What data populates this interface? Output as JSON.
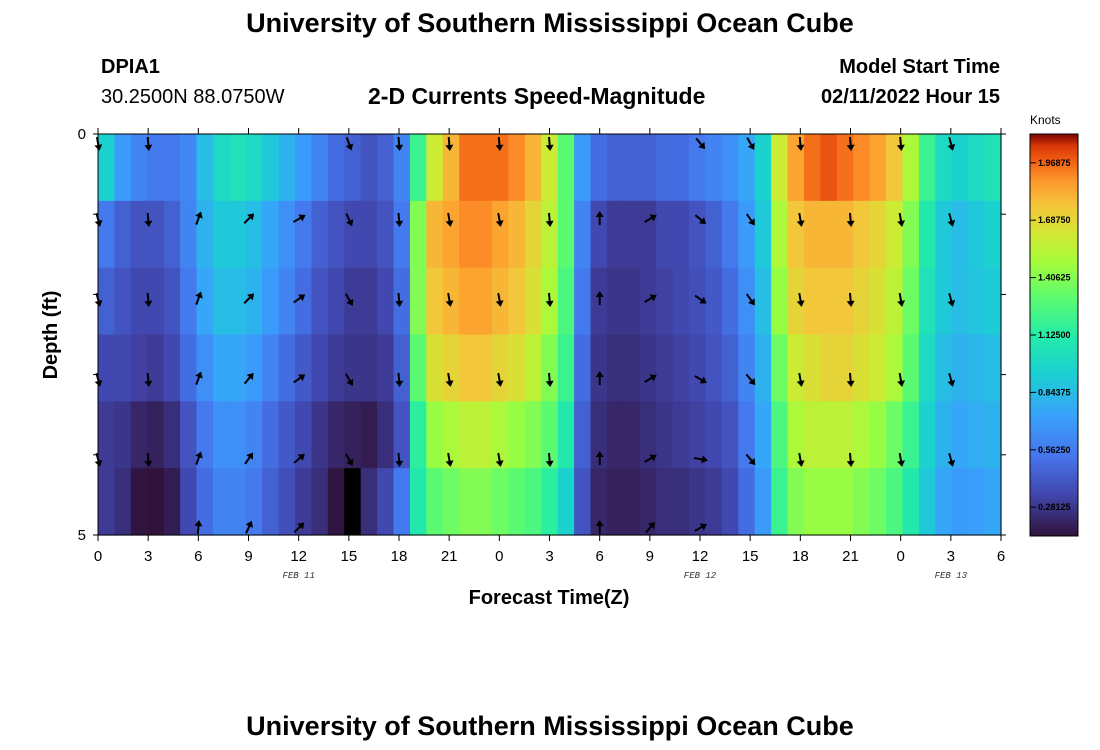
{
  "header": {
    "title": "University of Southern Mississippi Ocean Cube",
    "station": "DPIA1",
    "coords": "30.2500N  88.0750W",
    "subtitle": "2-D Currents Speed-Magnitude",
    "model_start_label": "Model Start Time",
    "model_start_value": "02/11/2022 Hour 15"
  },
  "footer": {
    "title": "University of Southern Mississippi Ocean Cube"
  },
  "chart_data": {
    "type": "heatmap",
    "title": "2-D Currents Speed-Magnitude",
    "xlabel": "Forecast Time(Z)",
    "ylabel": "Depth (ft)",
    "x_ticks": [
      "0",
      "3",
      "6",
      "9",
      "12",
      "15",
      "18",
      "21",
      "0",
      "3",
      "6",
      "9",
      "12",
      "15",
      "18",
      "21",
      "0",
      "3",
      "6"
    ],
    "x_range_hours": [
      0,
      54
    ],
    "y_ticks": [
      "0",
      "5"
    ],
    "depth_range_ft": [
      0,
      5
    ],
    "date_labels": [
      {
        "text": "FEB 11",
        "hour": 12
      },
      {
        "text": "FEB 12",
        "hour": 36
      },
      {
        "text": "FEB 13",
        "hour": 51
      }
    ],
    "depth_levels_ft": [
      0,
      1,
      2,
      3,
      4,
      5
    ],
    "speed_knots_by_level": [
      [
        0.95,
        0.7,
        0.6,
        0.55,
        0.55,
        0.62,
        0.85,
        1.0,
        1.05,
        1.0,
        0.9,
        0.8,
        0.7,
        0.6,
        0.5,
        0.45,
        0.4,
        0.45,
        0.6,
        1.2,
        1.6,
        1.8,
        1.95,
        1.95,
        1.95,
        1.9,
        1.8,
        1.6,
        1.3,
        0.7,
        0.5,
        0.45,
        0.45,
        0.45,
        0.5,
        0.5,
        0.55,
        0.6,
        0.65,
        0.75,
        0.95,
        1.6,
        1.85,
        1.95,
        2.0,
        1.95,
        1.9,
        1.85,
        1.75,
        1.5,
        1.2,
        1.0,
        0.95,
        1.0,
        1.05
      ],
      [
        0.55,
        0.45,
        0.4,
        0.4,
        0.45,
        0.6,
        0.8,
        0.9,
        0.9,
        0.85,
        0.75,
        0.65,
        0.55,
        0.45,
        0.4,
        0.35,
        0.35,
        0.4,
        0.55,
        1.4,
        1.8,
        1.85,
        1.9,
        1.9,
        1.85,
        1.8,
        1.7,
        1.55,
        1.3,
        0.6,
        0.35,
        0.3,
        0.3,
        0.3,
        0.35,
        0.35,
        0.4,
        0.45,
        0.55,
        0.7,
        0.9,
        1.5,
        1.75,
        1.8,
        1.8,
        1.8,
        1.75,
        1.7,
        1.6,
        1.4,
        1.1,
        0.9,
        0.85,
        0.9,
        0.95
      ],
      [
        0.45,
        0.4,
        0.35,
        0.35,
        0.4,
        0.55,
        0.75,
        0.85,
        0.85,
        0.8,
        0.7,
        0.6,
        0.5,
        0.4,
        0.35,
        0.3,
        0.3,
        0.35,
        0.5,
        1.4,
        1.75,
        1.8,
        1.85,
        1.85,
        1.8,
        1.75,
        1.65,
        1.5,
        1.25,
        0.55,
        0.3,
        0.28,
        0.28,
        0.3,
        0.32,
        0.35,
        0.38,
        0.42,
        0.5,
        0.65,
        0.85,
        1.45,
        1.7,
        1.75,
        1.75,
        1.75,
        1.7,
        1.65,
        1.55,
        1.35,
        1.05,
        0.9,
        0.85,
        0.88,
        0.92
      ],
      [
        0.35,
        0.35,
        0.32,
        0.3,
        0.35,
        0.5,
        0.65,
        0.75,
        0.75,
        0.7,
        0.6,
        0.5,
        0.42,
        0.35,
        0.3,
        0.28,
        0.28,
        0.3,
        0.45,
        1.3,
        1.65,
        1.7,
        1.75,
        1.75,
        1.7,
        1.65,
        1.55,
        1.4,
        1.2,
        0.5,
        0.28,
        0.25,
        0.25,
        0.28,
        0.3,
        0.32,
        0.35,
        0.4,
        0.45,
        0.6,
        0.8,
        1.35,
        1.6,
        1.65,
        1.7,
        1.7,
        1.65,
        1.6,
        1.5,
        1.3,
        1.0,
        0.85,
        0.8,
        0.82,
        0.85
      ],
      [
        0.3,
        0.28,
        0.22,
        0.2,
        0.25,
        0.4,
        0.55,
        0.65,
        0.65,
        0.6,
        0.5,
        0.42,
        0.35,
        0.28,
        0.22,
        0.2,
        0.18,
        0.25,
        0.4,
        1.15,
        1.45,
        1.5,
        1.55,
        1.55,
        1.5,
        1.45,
        1.4,
        1.3,
        1.1,
        0.45,
        0.25,
        0.22,
        0.22,
        0.25,
        0.28,
        0.3,
        0.32,
        0.35,
        0.4,
        0.55,
        0.75,
        1.25,
        1.5,
        1.55,
        1.55,
        1.55,
        1.5,
        1.45,
        1.35,
        1.2,
        0.95,
        0.8,
        0.75,
        0.78,
        0.8
      ],
      [
        0.3,
        0.25,
        0.15,
        0.12,
        0.18,
        0.35,
        0.5,
        0.6,
        0.6,
        0.55,
        0.45,
        0.38,
        0.3,
        0.25,
        0.15,
        0.05,
        0.25,
        0.35,
        0.55,
        1.1,
        1.3,
        1.35,
        1.4,
        1.4,
        1.35,
        1.3,
        1.25,
        1.15,
        0.95,
        0.4,
        0.22,
        0.2,
        0.2,
        0.22,
        0.25,
        0.25,
        0.28,
        0.3,
        0.35,
        0.5,
        0.7,
        1.2,
        1.4,
        1.45,
        1.45,
        1.45,
        1.4,
        1.35,
        1.25,
        1.1,
        0.9,
        0.75,
        0.7,
        0.72,
        0.75
      ]
    ],
    "colorbar": {
      "title": "Knots",
      "range": [
        0.14,
        2.11
      ],
      "tick_labels": [
        "1.96875",
        "1.68750",
        "1.40625",
        "1.12500",
        "0.84375",
        "0.56250",
        "0.28125"
      ],
      "tick_values": [
        1.96875,
        1.6875,
        1.40625,
        1.125,
        0.84375,
        0.5625,
        0.28125
      ]
    },
    "arrow_hours": [
      0,
      3,
      6,
      9,
      12,
      15,
      18,
      21,
      24,
      27,
      30,
      33,
      36,
      39,
      42,
      45,
      48,
      51,
      54
    ],
    "arrow_directions_deg": [
      [
        170,
        175,
        null,
        null,
        null,
        160,
        175,
        175,
        175,
        175,
        null,
        null,
        140,
        150,
        175,
        175,
        175,
        165,
        null
      ],
      [
        165,
        175,
        20,
        45,
        60,
        155,
        175,
        170,
        170,
        175,
        0,
        60,
        130,
        145,
        170,
        175,
        170,
        165,
        null
      ],
      [
        165,
        175,
        20,
        45,
        55,
        150,
        175,
        170,
        170,
        175,
        0,
        60,
        125,
        145,
        170,
        175,
        170,
        165,
        null
      ],
      [
        165,
        175,
        20,
        40,
        55,
        150,
        175,
        170,
        170,
        175,
        0,
        60,
        120,
        140,
        170,
        175,
        170,
        165,
        null
      ],
      [
        165,
        175,
        20,
        35,
        50,
        150,
        175,
        170,
        170,
        175,
        0,
        60,
        100,
        140,
        170,
        175,
        170,
        165,
        null
      ],
      [
        null,
        null,
        5,
        25,
        45,
        null,
        null,
        null,
        null,
        null,
        0,
        40,
        60,
        null,
        null,
        null,
        null,
        null,
        null
      ]
    ]
  }
}
